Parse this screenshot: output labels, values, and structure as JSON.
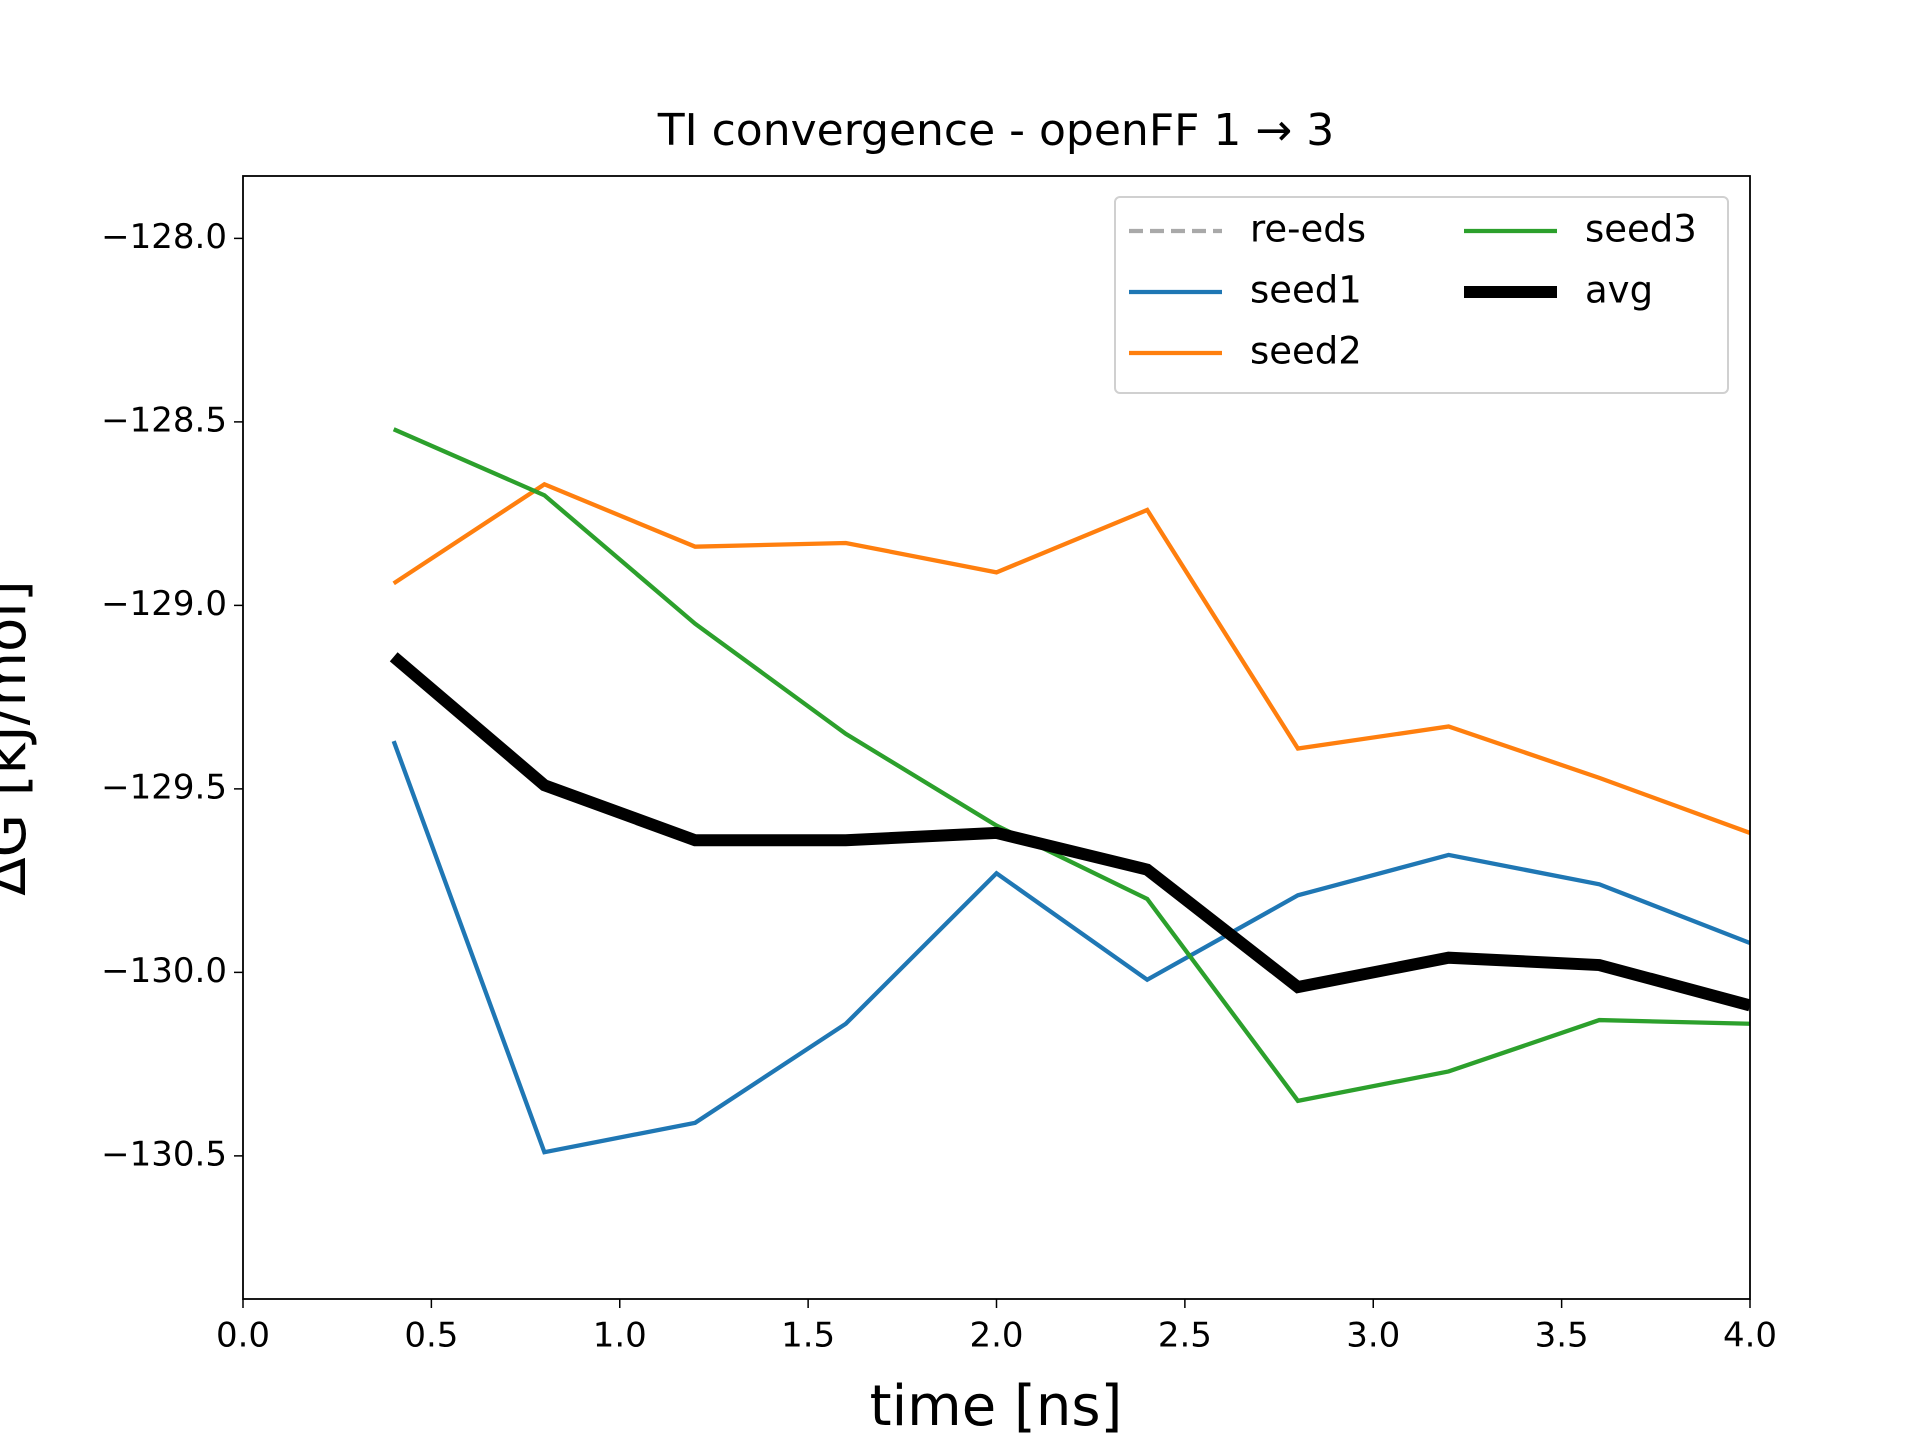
{
  "chart_data": {
    "type": "line",
    "title": "TI convergence - openFF 1 → 3",
    "xlabel": "time [ns]",
    "ylabel": "ΔG [kJ/mol]",
    "x": [
      0.4,
      0.8,
      1.2,
      1.6,
      2.0,
      2.4,
      2.8,
      3.2,
      3.6,
      4.0
    ],
    "series": [
      {
        "name": "re-eds",
        "color": "#a9a9a9",
        "dash": true,
        "values": [
          null,
          null,
          null,
          null,
          null,
          null,
          null,
          null,
          null,
          null
        ]
      },
      {
        "name": "seed1",
        "color": "#1f77b4",
        "values": [
          -129.37,
          -130.49,
          -130.41,
          -130.14,
          -129.73,
          -130.02,
          -129.79,
          -129.68,
          -129.76,
          -129.92
        ]
      },
      {
        "name": "seed2",
        "color": "#ff7f0e",
        "values": [
          -128.94,
          -128.67,
          -128.84,
          -128.83,
          -128.91,
          -128.74,
          -129.39,
          -129.33,
          -129.47,
          -129.62
        ]
      },
      {
        "name": "seed3",
        "color": "#2ca02c",
        "values": [
          -128.52,
          -128.7,
          -129.05,
          -129.35,
          -129.6,
          -129.8,
          -130.35,
          -130.27,
          -130.13,
          -130.14
        ]
      },
      {
        "name": "avg",
        "color": "#000000",
        "bold": true,
        "values": [
          -129.14,
          -129.49,
          -129.64,
          -129.64,
          -129.62,
          -129.72,
          -130.04,
          -129.96,
          -129.98,
          -130.09
        ]
      }
    ],
    "xlim": [
      0,
      4
    ],
    "ylim": [
      -130.89,
      -127.83
    ],
    "xticks": [
      {
        "value": 0,
        "label": "0.0"
      },
      0.5,
      {
        "value": 1,
        "label": "1.0"
      },
      1.5,
      {
        "value": 2,
        "label": "2.0"
      },
      2.5,
      {
        "value": 3,
        "label": "3.0"
      },
      3.5,
      {
        "value": 4,
        "label": "4.0"
      }
    ],
    "yticks": [
      {
        "value": -128,
        "label": "−128.0"
      },
      {
        "value": -128.5,
        "label": "−128.5"
      },
      {
        "value": -129,
        "label": "−129.0"
      },
      {
        "value": -129.5,
        "label": "−129.5"
      },
      {
        "value": -130,
        "label": "−130.0"
      },
      {
        "value": -130.5,
        "label": "−130.5"
      }
    ],
    "legend": "upper right",
    "legend_columns": 2,
    "grid": false
  }
}
